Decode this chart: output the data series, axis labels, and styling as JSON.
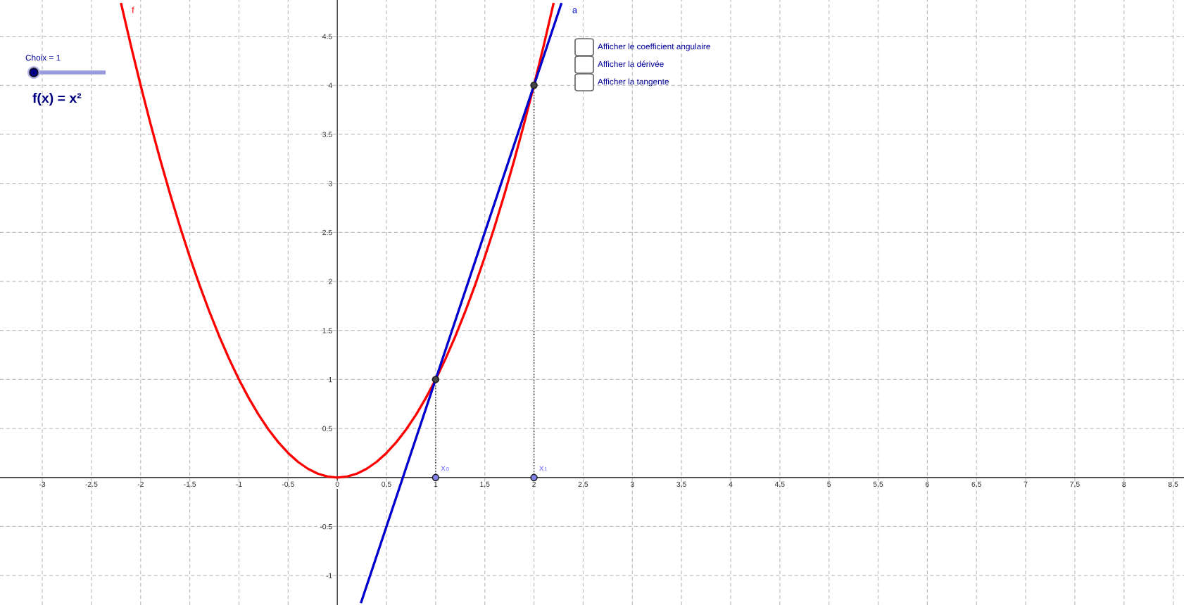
{
  "chart_data": {
    "type": "line",
    "xlim": [
      -3.43,
      8.61
    ],
    "ylim": [
      -1.3,
      4.87
    ],
    "xticks": [
      -3,
      -2.5,
      -2,
      -1.5,
      -1,
      -0.5,
      0,
      0.5,
      1,
      1.5,
      2,
      2.5,
      3,
      3.5,
      4,
      4.5,
      5,
      5.5,
      6,
      6.5,
      7,
      7.5,
      8,
      8.5
    ],
    "yticks": [
      -1,
      -0.5,
      0.5,
      1,
      1.5,
      2,
      2.5,
      3,
      3.5,
      4,
      4.5
    ],
    "grid": true,
    "series": [
      {
        "name": "f",
        "color": "#ff0000",
        "x": [
          -2.2,
          -2.1,
          -2.0,
          -1.9,
          -1.8,
          -1.7,
          -1.6,
          -1.5,
          -1.4,
          -1.3,
          -1.2,
          -1.1,
          -1.0,
          -0.9,
          -0.8,
          -0.7,
          -0.6,
          -0.5,
          -0.4,
          -0.3,
          -0.2,
          -0.1,
          0,
          0.1,
          0.2,
          0.3,
          0.4,
          0.5,
          0.6,
          0.7,
          0.8,
          0.9,
          1.0,
          1.1,
          1.2,
          1.3,
          1.4,
          1.5,
          1.6,
          1.7,
          1.8,
          1.9,
          2.0,
          2.1,
          2.2
        ],
        "values": [
          4.84,
          4.41,
          4.0,
          3.61,
          3.24,
          2.89,
          2.56,
          2.25,
          1.96,
          1.69,
          1.44,
          1.21,
          1.0,
          0.81,
          0.64,
          0.49,
          0.36,
          0.25,
          0.16,
          0.09,
          0.04,
          0.01,
          0,
          0.01,
          0.04,
          0.09,
          0.16,
          0.25,
          0.36,
          0.49,
          0.64,
          0.81,
          1.0,
          1.21,
          1.44,
          1.69,
          1.96,
          2.25,
          2.56,
          2.89,
          3.24,
          3.61,
          4.0,
          4.41,
          4.84
        ]
      },
      {
        "name": "a",
        "color": "#0000cc",
        "x": [
          0.24,
          2.28
        ],
        "values": [
          -1.28,
          4.84
        ]
      },
      {
        "type": "line",
        "line_style": "dotted",
        "color": "#333333",
        "x": [
          1,
          1
        ],
        "values": [
          0,
          1
        ]
      },
      {
        "type": "line",
        "line_style": "dotted",
        "color": "#333333",
        "x": [
          2,
          2
        ],
        "values": [
          0,
          4
        ]
      },
      {
        "type": "scatter",
        "marker": "circle",
        "color": "#444444",
        "x": [
          1,
          2
        ],
        "values": [
          1,
          4
        ]
      },
      {
        "type": "scatter",
        "marker": "circle",
        "color": "#8080e6",
        "x": [
          1,
          2
        ],
        "values": [
          0,
          0
        ]
      }
    ],
    "annotations": [
      {
        "text": "x₀",
        "x": 1,
        "y": 0
      },
      {
        "text": "x₁",
        "x": 2,
        "y": 0
      },
      "Choix = 1",
      "f(x) = x²",
      "Afficher le coefficient angulaire",
      "Afficher la dérivée",
      "Afficher la tangente"
    ]
  }
}
